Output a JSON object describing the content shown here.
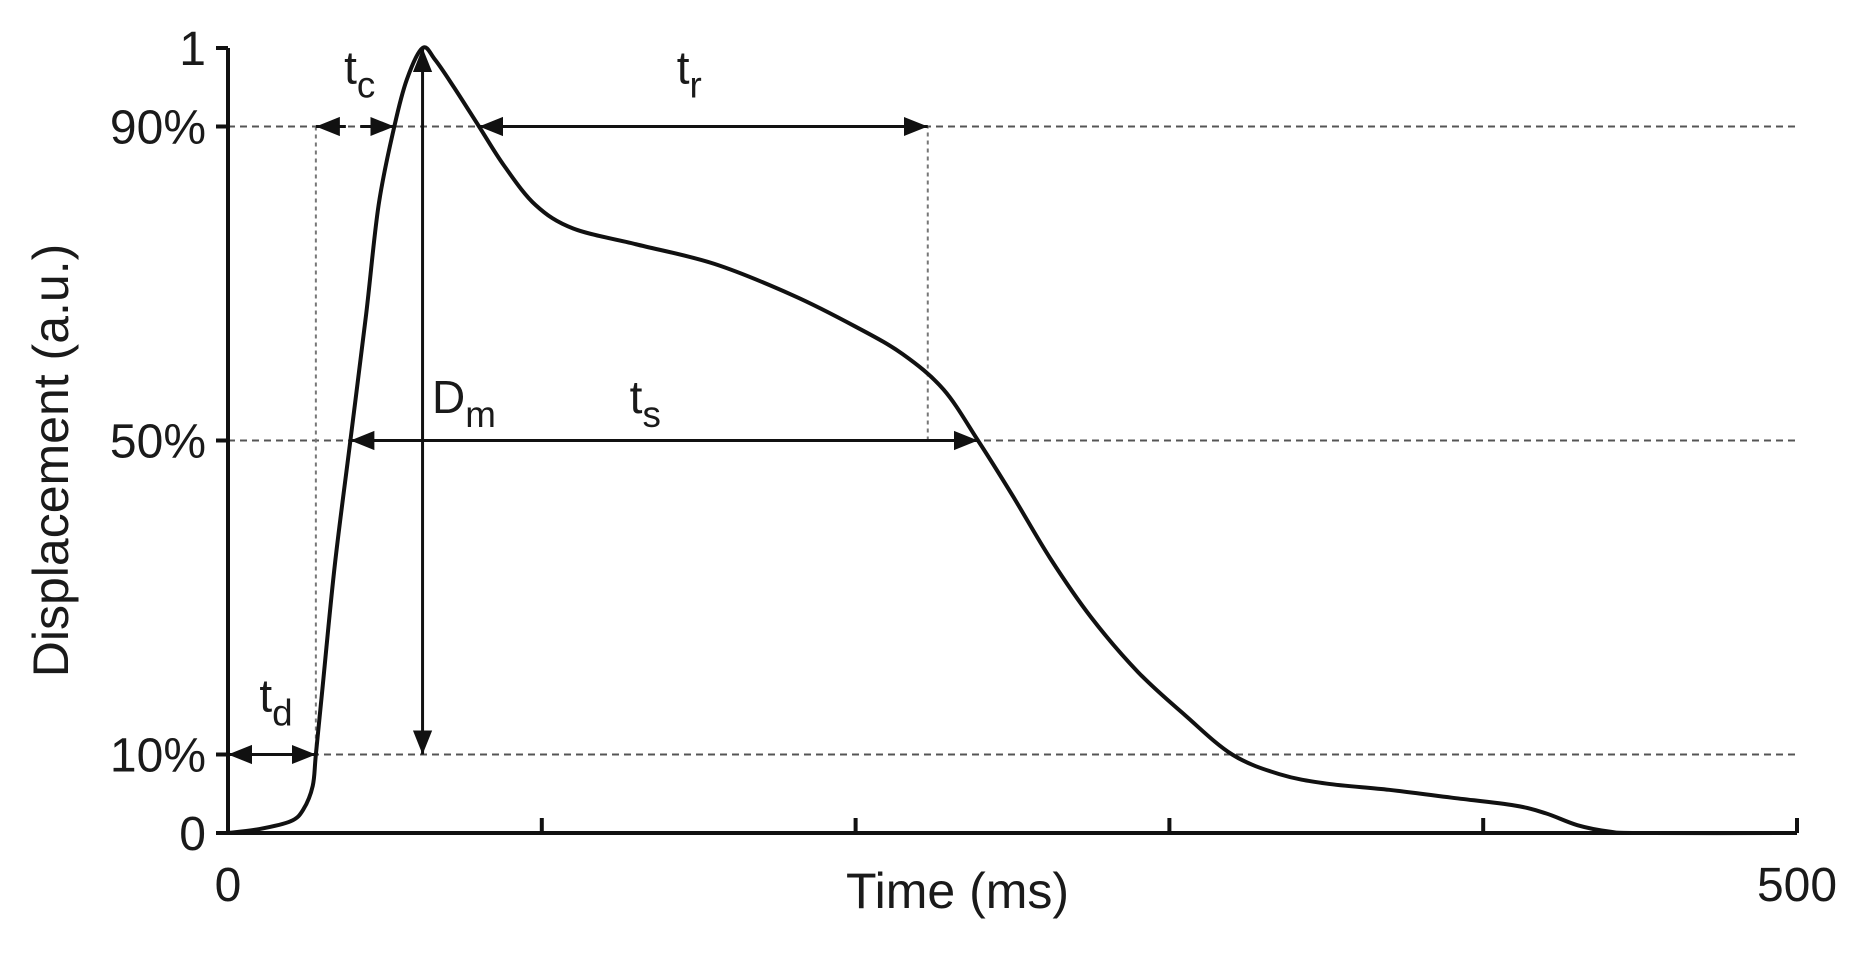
{
  "chart_data": {
    "type": "line",
    "title": "",
    "xlabel": "Time (ms)",
    "ylabel": "Displacement (a.u.)",
    "xlim": [
      0,
      500
    ],
    "ylim": [
      0,
      1
    ],
    "x_tick_labels": [
      {
        "x": 0,
        "label": "0"
      },
      {
        "x": 500,
        "label": "500"
      }
    ],
    "x_minor_ticks": [
      100,
      200,
      300,
      400
    ],
    "y_tick_labels": [
      {
        "y": 0,
        "label": "0"
      },
      {
        "y": 0.1,
        "label": "10%"
      },
      {
        "y": 0.5,
        "label": "50%"
      },
      {
        "y": 0.9,
        "label": "90%"
      },
      {
        "y": 1,
        "label": "1"
      }
    ],
    "reference_lines_y": [
      0.1,
      0.5,
      0.9
    ],
    "series": [
      {
        "name": "",
        "color": "#111111",
        "points": [
          [
            0,
            0.0
          ],
          [
            10,
            0.005
          ],
          [
            20,
            0.015
          ],
          [
            24,
            0.03
          ],
          [
            27,
            0.06
          ],
          [
            28,
            0.1
          ],
          [
            30,
            0.18
          ],
          [
            34,
            0.34
          ],
          [
            39,
            0.5
          ],
          [
            44,
            0.66
          ],
          [
            48,
            0.8
          ],
          [
            53,
            0.9
          ],
          [
            57,
            0.96
          ],
          [
            62,
            1.0
          ],
          [
            66,
            0.985
          ],
          [
            72,
            0.95
          ],
          [
            80,
            0.9
          ],
          [
            88,
            0.85
          ],
          [
            98,
            0.8
          ],
          [
            110,
            0.77
          ],
          [
            130,
            0.75
          ],
          [
            155,
            0.725
          ],
          [
            180,
            0.685
          ],
          [
            200,
            0.645
          ],
          [
            215,
            0.61
          ],
          [
            228,
            0.565
          ],
          [
            239,
            0.5
          ],
          [
            250,
            0.43
          ],
          [
            262,
            0.35
          ],
          [
            275,
            0.275
          ],
          [
            290,
            0.205
          ],
          [
            305,
            0.15
          ],
          [
            320,
            0.1
          ],
          [
            335,
            0.075
          ],
          [
            350,
            0.063
          ],
          [
            370,
            0.055
          ],
          [
            390,
            0.045
          ],
          [
            410,
            0.035
          ],
          [
            420,
            0.025
          ],
          [
            430,
            0.01
          ],
          [
            440,
            0.002
          ],
          [
            450,
            0.0
          ],
          [
            500,
            0.0
          ]
        ]
      }
    ],
    "annotations": {
      "t_d": {
        "base": "t",
        "sub": "d",
        "from": [
          0,
          0.1
        ],
        "to": [
          28,
          0.1
        ]
      },
      "t_c": {
        "base": "t",
        "sub": "c",
        "from": [
          28,
          0.9
        ],
        "to": [
          53,
          0.9
        ],
        "note": "outward arrows at 90% between vertical guide at x=28 and curve"
      },
      "t_r": {
        "base": "t",
        "sub": "r",
        "from": [
          80,
          0.9
        ],
        "to": [
          223,
          0.9
        ]
      },
      "t_s": {
        "base": "t",
        "sub": "s",
        "from": [
          39,
          0.5
        ],
        "to": [
          239,
          0.5
        ]
      },
      "D_m": {
        "base": "D",
        "sub": "m",
        "from": [
          62,
          1.0
        ],
        "to": [
          62,
          0.1
        ]
      }
    },
    "vertical_guides_x": [
      {
        "x": 28,
        "from_y": 0.1,
        "to_y": 0.9
      },
      {
        "x": 223,
        "from_y": 0.5,
        "to_y": 0.9
      }
    ],
    "grid": false,
    "legend": "none"
  }
}
